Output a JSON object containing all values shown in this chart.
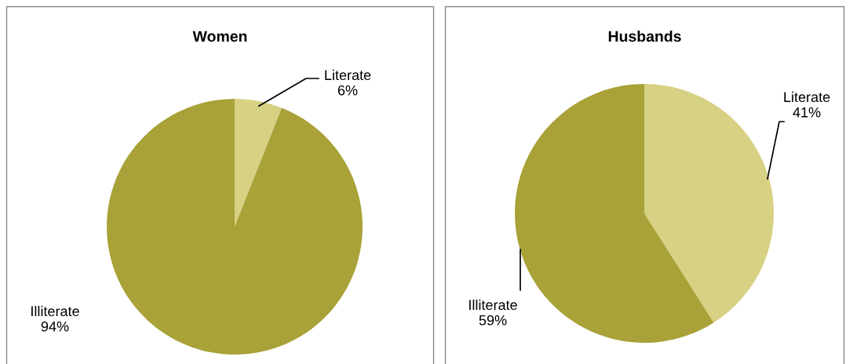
{
  "chart_data": [
    {
      "type": "pie",
      "title": "Women",
      "categories": [
        "Literate",
        "Illiterate"
      ],
      "values": [
        6,
        94
      ],
      "value_labels": [
        "6%",
        "94%"
      ],
      "colors": [
        "#d7d183",
        "#a8a238"
      ]
    },
    {
      "type": "pie",
      "title": "Husbands",
      "categories": [
        "Literate",
        "Illiterate"
      ],
      "values": [
        41,
        59
      ],
      "value_labels": [
        "41%",
        "59%"
      ],
      "colors": [
        "#d7d183",
        "#a8a238"
      ]
    }
  ]
}
